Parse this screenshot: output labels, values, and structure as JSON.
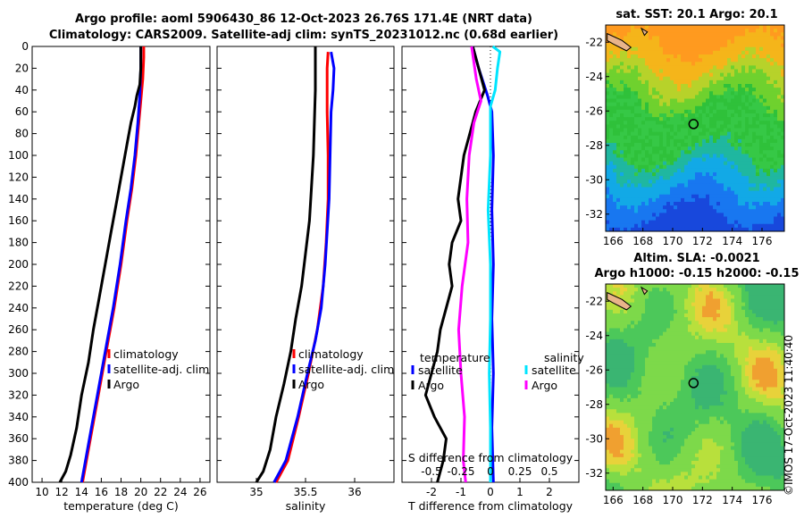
{
  "header": {
    "line1": "Argo profile: aoml 5906430_86 12-Oct-2023 26.76S 171.4E (NRT data)",
    "line2": "Climatology: CARS2009. Satellite-adj clim: synTS_20231012.nc (0.68d earlier)"
  },
  "stamp": "©IMOS 17-Oct-2023 11:40:40",
  "colors": {
    "climatology": "#ff0000",
    "satellite": "#0000ff",
    "argo": "#000000",
    "sal_sat": "#00e5ff",
    "sal_argo": "#ff00ff"
  },
  "chart_data": [
    {
      "type": "line",
      "id": "temperature",
      "xlabel": "temperature (deg C)",
      "xlim": [
        9,
        27
      ],
      "xticks": [
        10,
        12,
        14,
        16,
        18,
        20,
        22,
        24,
        26
      ],
      "ylim": [
        0,
        400
      ],
      "yticks": [
        0,
        20,
        40,
        60,
        80,
        100,
        120,
        140,
        160,
        180,
        200,
        220,
        240,
        260,
        280,
        300,
        320,
        340,
        360,
        380,
        400
      ],
      "legend": [
        "climatology",
        "satellite-adj. clim",
        "Argo"
      ],
      "series": [
        {
          "name": "climatology",
          "color": "#ff0000",
          "points": [
            [
              20.3,
              0
            ],
            [
              20.3,
              10
            ],
            [
              20.2,
              30
            ],
            [
              20.0,
              50
            ],
            [
              19.8,
              70
            ],
            [
              19.5,
              100
            ],
            [
              19.1,
              130
            ],
            [
              18.6,
              160
            ],
            [
              18.0,
              200
            ],
            [
              17.3,
              240
            ],
            [
              16.5,
              280
            ],
            [
              15.7,
              320
            ],
            [
              14.9,
              360
            ],
            [
              14.1,
              400
            ]
          ]
        },
        {
          "name": "satellite-adj. clim",
          "color": "#0000ff",
          "points": [
            [
              20.0,
              0
            ],
            [
              20.0,
              20
            ],
            [
              19.9,
              45
            ],
            [
              19.7,
              70
            ],
            [
              19.4,
              100
            ],
            [
              19.0,
              130
            ],
            [
              18.5,
              160
            ],
            [
              17.9,
              200
            ],
            [
              17.2,
              240
            ],
            [
              16.4,
              280
            ],
            [
              15.6,
              320
            ],
            [
              14.8,
              360
            ],
            [
              14.0,
              400
            ]
          ]
        },
        {
          "name": "Argo",
          "color": "#000000",
          "points": [
            [
              20.0,
              0
            ],
            [
              20.0,
              20
            ],
            [
              19.9,
              35
            ],
            [
              19.6,
              45
            ],
            [
              19.4,
              55
            ],
            [
              19.0,
              70
            ],
            [
              18.6,
              90
            ],
            [
              18.0,
              120
            ],
            [
              17.6,
              140
            ],
            [
              17.0,
              170
            ],
            [
              16.4,
              200
            ],
            [
              15.8,
              230
            ],
            [
              15.2,
              260
            ],
            [
              14.7,
              290
            ],
            [
              14.0,
              320
            ],
            [
              13.5,
              350
            ],
            [
              12.9,
              375
            ],
            [
              12.4,
              390
            ],
            [
              11.8,
              400
            ]
          ]
        }
      ]
    },
    {
      "type": "line",
      "id": "salinity",
      "xlabel": "salinity",
      "xlim": [
        34.6,
        36.4
      ],
      "xticks": [
        35,
        35.5,
        36
      ],
      "xtick_labels": [
        "35",
        "35.5",
        "36"
      ],
      "ylim": [
        0,
        400
      ],
      "legend": [
        "climatology",
        "satellite-adj. clim",
        "Argo"
      ],
      "series": [
        {
          "name": "climatology",
          "color": "#ff0000",
          "points": [
            [
              35.73,
              5
            ],
            [
              35.72,
              20
            ],
            [
              35.72,
              60
            ],
            [
              35.73,
              100
            ],
            [
              35.73,
              140
            ],
            [
              35.71,
              180
            ],
            [
              35.68,
              220
            ],
            [
              35.62,
              260
            ],
            [
              35.53,
              300
            ],
            [
              35.43,
              340
            ],
            [
              35.32,
              380
            ],
            [
              35.2,
              400
            ]
          ]
        },
        {
          "name": "satellite-adj. clim",
          "color": "#0000ff",
          "points": [
            [
              35.76,
              5
            ],
            [
              35.79,
              20
            ],
            [
              35.78,
              40
            ],
            [
              35.76,
              60
            ],
            [
              35.75,
              100
            ],
            [
              35.74,
              140
            ],
            [
              35.72,
              170
            ],
            [
              35.7,
              200
            ],
            [
              35.66,
              240
            ],
            [
              35.6,
              270
            ],
            [
              35.52,
              300
            ],
            [
              35.42,
              340
            ],
            [
              35.3,
              380
            ],
            [
              35.18,
              400
            ]
          ]
        },
        {
          "name": "Argo",
          "color": "#000000",
          "points": [
            [
              35.6,
              0
            ],
            [
              35.6,
              40
            ],
            [
              35.59,
              70
            ],
            [
              35.58,
              100
            ],
            [
              35.56,
              130
            ],
            [
              35.54,
              160
            ],
            [
              35.5,
              190
            ],
            [
              35.46,
              220
            ],
            [
              35.4,
              250
            ],
            [
              35.35,
              280
            ],
            [
              35.28,
              310
            ],
            [
              35.2,
              340
            ],
            [
              35.14,
              370
            ],
            [
              35.07,
              390
            ],
            [
              35.0,
              400
            ]
          ]
        }
      ]
    },
    {
      "type": "line",
      "id": "differences",
      "xlabel": "T difference from climatology",
      "xlim": [
        -3,
        3
      ],
      "xticks": [
        -2,
        -1,
        0,
        1,
        2
      ],
      "top_axis_label": "S difference from climatology",
      "top_ticks": [
        -0.5,
        -0.25,
        0,
        0.25,
        0.5
      ],
      "top_tick_labels": [
        "-0.5",
        "-0.25",
        "0",
        "0.25",
        "0.5"
      ],
      "ylim": [
        0,
        400
      ],
      "legend_headers": [
        "temperature",
        "salinity"
      ],
      "legend": [
        "satellite",
        "Argo",
        "satellite",
        "Argo"
      ],
      "series": [
        {
          "name": "temperature satellite",
          "color": "#0000ff",
          "points": [
            [
              -0.6,
              0
            ],
            [
              -0.4,
              20
            ],
            [
              -0.1,
              45
            ],
            [
              0.05,
              60
            ],
            [
              0.1,
              100
            ],
            [
              0.05,
              150
            ],
            [
              0.1,
              200
            ],
            [
              0.05,
              250
            ],
            [
              0.1,
              300
            ],
            [
              0.05,
              350
            ],
            [
              0.1,
              400
            ]
          ]
        },
        {
          "name": "temperature Argo",
          "color": "#000000",
          "points": [
            [
              -0.6,
              0
            ],
            [
              -0.4,
              20
            ],
            [
              -0.2,
              40
            ],
            [
              -0.5,
              60
            ],
            [
              -0.7,
              80
            ],
            [
              -0.9,
              100
            ],
            [
              -1.0,
              120
            ],
            [
              -1.1,
              140
            ],
            [
              -1.0,
              160
            ],
            [
              -1.3,
              180
            ],
            [
              -1.4,
              200
            ],
            [
              -1.3,
              220
            ],
            [
              -1.5,
              240
            ],
            [
              -1.7,
              260
            ],
            [
              -1.8,
              280
            ],
            [
              -2.0,
              300
            ],
            [
              -2.2,
              320
            ],
            [
              -1.9,
              340
            ],
            [
              -1.5,
              360
            ],
            [
              -1.6,
              380
            ],
            [
              -1.8,
              400
            ]
          ]
        },
        {
          "name": "salinity satellite",
          "color": "#00e5ff",
          "points": [
            [
              0.02,
              0
            ],
            [
              0.08,
              5
            ],
            [
              0.06,
              20
            ],
            [
              0.04,
              40
            ],
            [
              0.0,
              55
            ],
            [
              0.0,
              100
            ],
            [
              -0.02,
              150
            ],
            [
              0.0,
              200
            ],
            [
              0.0,
              250
            ],
            [
              -0.01,
              300
            ],
            [
              0.0,
              350
            ],
            [
              0.0,
              400
            ]
          ]
        },
        {
          "name": "salinity Argo",
          "color": "#ff00ff",
          "points": [
            [
              -0.16,
              0
            ],
            [
              -0.12,
              30
            ],
            [
              -0.08,
              50
            ],
            [
              -0.14,
              70
            ],
            [
              -0.18,
              100
            ],
            [
              -0.2,
              140
            ],
            [
              -0.19,
              180
            ],
            [
              -0.24,
              220
            ],
            [
              -0.27,
              260
            ],
            [
              -0.25,
              300
            ],
            [
              -0.22,
              340
            ],
            [
              -0.23,
              380
            ],
            [
              -0.21,
              400
            ]
          ]
        }
      ]
    },
    {
      "type": "heatmap",
      "id": "sst-map",
      "title": "sat. SST: 20.1 Argo: 20.1",
      "xlim": [
        165.5,
        177.5
      ],
      "ylim": [
        -33,
        -21
      ],
      "xticks": [
        166,
        168,
        170,
        172,
        174,
        176
      ],
      "yticks": [
        -22,
        -24,
        -26,
        -28,
        -30,
        -32
      ],
      "profile_location": [
        171.4,
        -26.76
      ]
    },
    {
      "type": "heatmap",
      "id": "sla-map",
      "title": "Altim. SLA: -0.0021",
      "subtitle": "Argo h1000: -0.15 h2000: -0.15",
      "xlim": [
        165.5,
        177.5
      ],
      "ylim": [
        -33,
        -21
      ],
      "xticks": [
        166,
        168,
        170,
        172,
        174,
        176
      ],
      "yticks": [
        -22,
        -24,
        -26,
        -28,
        -30,
        -32
      ],
      "profile_location": [
        171.4,
        -26.76
      ]
    }
  ]
}
